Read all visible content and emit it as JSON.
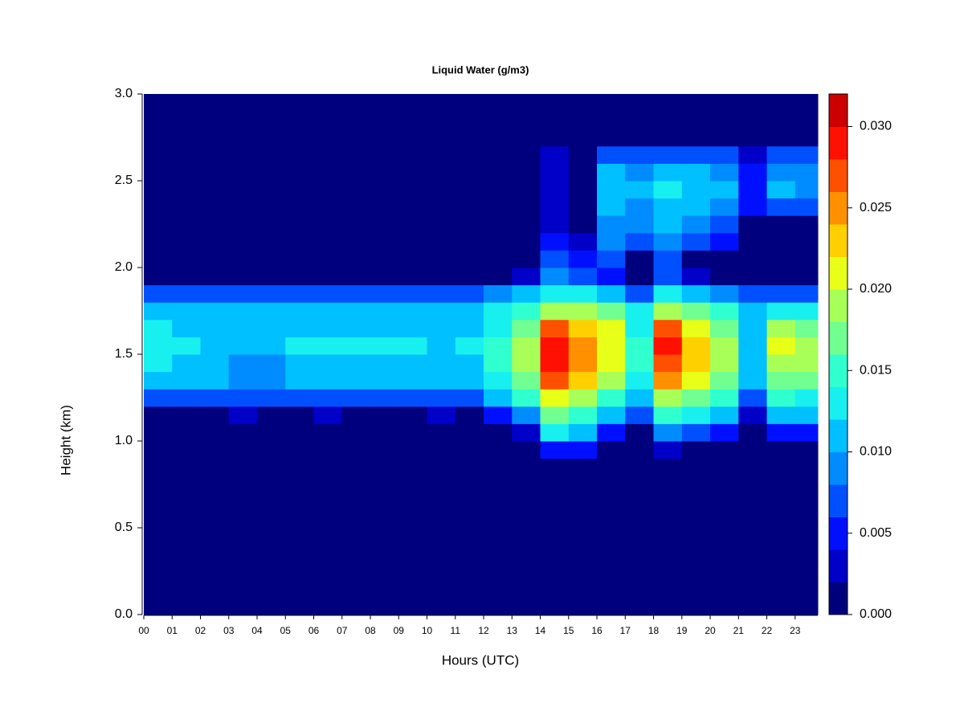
{
  "chart_data": {
    "type": "heatmap",
    "title": "Liquid Water (g/m3)",
    "x_label": "Hours (UTC)",
    "y_label": "Height (km)",
    "xlim": [
      0,
      23.8
    ],
    "ylim": [
      0,
      3
    ],
    "xticks": [
      {
        "value": 0,
        "label": "00"
      },
      {
        "value": 1,
        "label": "01"
      },
      {
        "value": 2,
        "label": "02"
      },
      {
        "value": 3,
        "label": "03"
      },
      {
        "value": 4,
        "label": "04"
      },
      {
        "value": 5,
        "label": "05"
      },
      {
        "value": 6,
        "label": "06"
      },
      {
        "value": 7,
        "label": "07"
      },
      {
        "value": 8,
        "label": "08"
      },
      {
        "value": 9,
        "label": "09"
      },
      {
        "value": 10,
        "label": "10"
      },
      {
        "value": 11,
        "label": "11"
      },
      {
        "value": 12,
        "label": "12"
      },
      {
        "value": 13,
        "label": "13"
      },
      {
        "value": 14,
        "label": "14"
      },
      {
        "value": 15,
        "label": "15"
      },
      {
        "value": 16,
        "label": "16"
      },
      {
        "value": 17,
        "label": "17"
      },
      {
        "value": 18,
        "label": "18"
      },
      {
        "value": 19,
        "label": "19"
      },
      {
        "value": 20,
        "label": "20"
      },
      {
        "value": 21,
        "label": "21"
      },
      {
        "value": 22,
        "label": "22"
      },
      {
        "value": 23,
        "label": "23"
      }
    ],
    "yticks": [
      {
        "value": 0,
        "label": "0.0"
      },
      0.5,
      {
        "value": 1,
        "label": "1.0"
      },
      1.5,
      {
        "value": 2,
        "label": "2.0"
      },
      2.5,
      {
        "value": 3,
        "label": "3.0"
      }
    ],
    "x": [
      0,
      1,
      2,
      3,
      4,
      5,
      6,
      7,
      8,
      9,
      10,
      11,
      12,
      13,
      14,
      15,
      16,
      17,
      18,
      19,
      20,
      21,
      22,
      23
    ],
    "y": [
      0,
      0.9,
      1.0,
      1.1,
      1.2,
      1.3,
      1.4,
      1.5,
      1.6,
      1.7,
      1.8,
      1.9,
      2.0,
      2.1,
      2.2,
      2.3,
      2.4,
      2.5,
      2.6,
      2.7
    ],
    "z": [
      [
        0,
        0,
        0,
        0,
        0,
        0,
        0,
        0,
        0,
        0,
        0,
        0,
        0,
        0,
        0,
        0,
        0,
        0,
        0,
        0,
        0,
        0,
        0,
        0
      ],
      [
        0,
        0,
        0,
        0,
        0,
        0,
        0,
        0,
        0,
        0,
        0,
        0,
        0,
        0,
        0.004,
        0.004,
        0,
        0,
        0.002,
        0,
        0,
        0,
        0,
        0
      ],
      [
        0,
        0,
        0,
        0,
        0,
        0,
        0,
        0,
        0,
        0,
        0,
        0,
        0,
        0.002,
        0.012,
        0.01,
        0.004,
        0,
        0.008,
        0.006,
        0.004,
        0,
        0.004,
        0.004
      ],
      [
        0,
        0,
        0,
        0.002,
        0,
        0,
        0.002,
        0,
        0,
        0,
        0.002,
        0,
        0.004,
        0.008,
        0.016,
        0.014,
        0.01,
        0.006,
        0.014,
        0.012,
        0.01,
        0.002,
        0.01,
        0.01
      ],
      [
        0.006,
        0.006,
        0.006,
        0.006,
        0.006,
        0.006,
        0.006,
        0.006,
        0.006,
        0.006,
        0.006,
        0.006,
        0.01,
        0.014,
        0.02,
        0.018,
        0.014,
        0.01,
        0.018,
        0.016,
        0.014,
        0.006,
        0.014,
        0.012
      ],
      [
        0.011,
        0.01,
        0.01,
        0.009,
        0.008,
        0.01,
        0.01,
        0.01,
        0.01,
        0.01,
        0.01,
        0.011,
        0.013,
        0.017,
        0.026,
        0.022,
        0.018,
        0.013,
        0.024,
        0.02,
        0.016,
        0.01,
        0.017,
        0.016
      ],
      [
        0.012,
        0.011,
        0.01,
        0.009,
        0.008,
        0.011,
        0.011,
        0.011,
        0.011,
        0.011,
        0.011,
        0.011,
        0.014,
        0.018,
        0.029,
        0.025,
        0.02,
        0.014,
        0.027,
        0.022,
        0.018,
        0.011,
        0.019,
        0.018
      ],
      [
        0.013,
        0.012,
        0.011,
        0.011,
        0.011,
        0.012,
        0.012,
        0.012,
        0.012,
        0.012,
        0.011,
        0.012,
        0.014,
        0.018,
        0.029,
        0.025,
        0.021,
        0.014,
        0.028,
        0.022,
        0.018,
        0.011,
        0.02,
        0.018
      ],
      [
        0.012,
        0.011,
        0.011,
        0.011,
        0.011,
        0.011,
        0.011,
        0.011,
        0.011,
        0.011,
        0.011,
        0.011,
        0.013,
        0.017,
        0.026,
        0.023,
        0.02,
        0.013,
        0.026,
        0.02,
        0.016,
        0.011,
        0.018,
        0.016
      ],
      [
        0.01,
        0.01,
        0.01,
        0.01,
        0.01,
        0.01,
        0.01,
        0.01,
        0.01,
        0.01,
        0.01,
        0.01,
        0.012,
        0.015,
        0.018,
        0.018,
        0.016,
        0.012,
        0.018,
        0.016,
        0.014,
        0.01,
        0.013,
        0.012
      ],
      [
        0.006,
        0.006,
        0.006,
        0.006,
        0.006,
        0.006,
        0.006,
        0.006,
        0.006,
        0.006,
        0.006,
        0.006,
        0.008,
        0.01,
        0.012,
        0.012,
        0.01,
        0.006,
        0.012,
        0.01,
        0.008,
        0.006,
        0.006,
        0.006
      ],
      [
        0,
        0,
        0,
        0,
        0,
        0,
        0,
        0,
        0,
        0,
        0,
        0,
        0,
        0.002,
        0.008,
        0.006,
        0.004,
        0,
        0.006,
        0.002,
        0,
        0,
        0,
        0
      ],
      [
        0,
        0,
        0,
        0,
        0,
        0,
        0,
        0,
        0,
        0,
        0,
        0,
        0,
        0,
        0.006,
        0.004,
        0.006,
        0,
        0.006,
        0,
        0,
        0,
        0,
        0
      ],
      [
        0,
        0,
        0,
        0,
        0,
        0,
        0,
        0,
        0,
        0,
        0,
        0,
        0,
        0,
        0.004,
        0.002,
        0.008,
        0.006,
        0.008,
        0.006,
        0.004,
        0,
        0,
        0
      ],
      [
        0,
        0,
        0,
        0,
        0,
        0,
        0,
        0,
        0,
        0,
        0,
        0,
        0,
        0,
        0.002,
        0,
        0.009,
        0.008,
        0.01,
        0.008,
        0.006,
        0,
        0,
        0
      ],
      [
        0,
        0,
        0,
        0,
        0,
        0,
        0,
        0,
        0,
        0,
        0,
        0,
        0,
        0,
        0.002,
        0,
        0.01,
        0.009,
        0.011,
        0.01,
        0.008,
        0.004,
        0.006,
        0.006
      ],
      [
        0,
        0,
        0,
        0,
        0,
        0,
        0,
        0,
        0,
        0,
        0,
        0,
        0,
        0,
        0.002,
        0,
        0.011,
        0.01,
        0.012,
        0.011,
        0.01,
        0.004,
        0.01,
        0.009
      ],
      [
        0,
        0,
        0,
        0,
        0,
        0,
        0,
        0,
        0,
        0,
        0,
        0,
        0,
        0,
        0.002,
        0,
        0.01,
        0.009,
        0.011,
        0.01,
        0.009,
        0.004,
        0.009,
        0.008
      ],
      [
        0,
        0,
        0,
        0,
        0,
        0,
        0,
        0,
        0,
        0,
        0,
        0,
        0,
        0,
        0.002,
        0,
        0.006,
        0.006,
        0.007,
        0.006,
        0.006,
        0.002,
        0.006,
        0.006
      ],
      [
        0,
        0,
        0,
        0,
        0,
        0,
        0,
        0,
        0,
        0,
        0,
        0,
        0,
        0,
        0,
        0,
        0,
        0,
        0,
        0,
        0,
        0,
        0,
        0
      ]
    ],
    "levels": [
      0,
      0.002,
      0.004,
      0.006,
      0.008,
      0.01,
      0.012,
      0.014,
      0.016,
      0.018,
      0.02,
      0.022,
      0.024,
      0.026,
      0.028,
      0.03,
      0.032
    ],
    "colors": [
      "#00007f",
      "#0000c8",
      "#0010ff",
      "#0050ff",
      "#008cff",
      "#00c0ff",
      "#18f0f0",
      "#30ffd0",
      "#70ff90",
      "#a8ff58",
      "#e8ff18",
      "#ffd000",
      "#ff9000",
      "#ff5000",
      "#ff1000",
      "#cc0000",
      "#800000"
    ],
    "colorbar_ticks": [
      {
        "value": 0,
        "label": "0.000"
      },
      {
        "value": 0.005,
        "label": "0.005"
      },
      {
        "value": 0.01,
        "label": "0.010"
      },
      {
        "value": 0.015,
        "label": "0.015"
      },
      {
        "value": 0.02,
        "label": "0.020"
      },
      {
        "value": 0.025,
        "label": "0.025"
      },
      {
        "value": 0.03,
        "label": "0.030"
      }
    ]
  }
}
